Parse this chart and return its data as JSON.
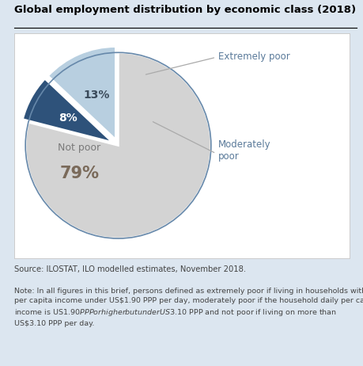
{
  "title": "Global employment distribution by economic class (2018)",
  "slices": [
    79,
    8,
    13
  ],
  "colors": [
    "#d3d3d3",
    "#2e527a",
    "#b8cfe0"
  ],
  "edge_color": "#ffffff",
  "pct_labels": [
    "79%",
    "8%",
    "13%"
  ],
  "label_not_poor": "Not poor",
  "label_ext_poor": "Extremely poor",
  "label_mod_poor": "Moderately\npoor",
  "pct_color_not_poor": "#7a6a5a",
  "pct_color_ext_poor": "#ffffff",
  "pct_color_mod_poor": "#3a4a5a",
  "source_text": "Source: ILOSTAT, ILO modelled estimates, November 2018.",
  "note_text": "Note: In all figures in this brief, persons defined as extremely poor if living in households with a\nper capita income under US$1.90 PPP per day, moderately poor if the household daily per capita\nincome is US$1.90 PPP or higher but under US$3.10 PPP and not poor if living on more than\nUS$3.10 PPP per day.",
  "bg_color": "#dce6f0",
  "chart_bg": "#ffffff",
  "explode": [
    0,
    0.07,
    0.07
  ],
  "start_angle": 90,
  "connector_color": "#aaaaaa",
  "ext_label_color": "#5a7a9a",
  "border_color": "#6688aa"
}
